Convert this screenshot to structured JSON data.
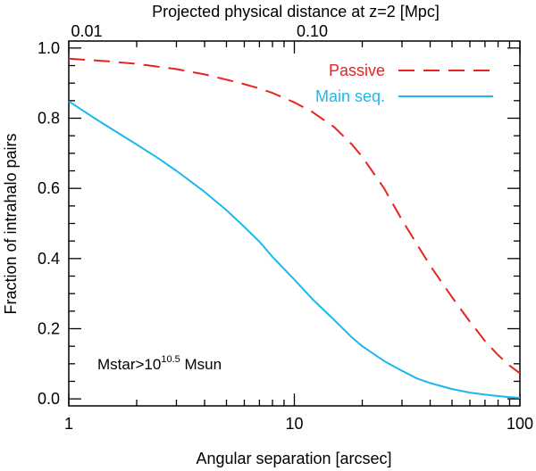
{
  "chart_data": {
    "type": "line",
    "title": "",
    "xlabel": "Angular separation [arcsec]",
    "ylabel": "Fraction of intrahalo pairs",
    "top_axis_label": "Projected physical distance at z=2 [Mpc]",
    "xscale": "log",
    "xlim": [
      1,
      100
    ],
    "ylim": [
      -0.02,
      1.02
    ],
    "x_ticks": [
      1,
      10,
      100
    ],
    "x_tick_labels": [
      "1",
      "10",
      "100"
    ],
    "y_ticks": [
      0.0,
      0.2,
      0.4,
      0.6,
      0.8,
      1.0
    ],
    "y_tick_labels": [
      "0.0",
      "0.2",
      "0.4",
      "0.6",
      "0.8",
      "1.0"
    ],
    "top_ticks_arcsec": [
      1,
      10
    ],
    "top_tick_labels": [
      "0.01",
      "0.10"
    ],
    "grid": false,
    "legend_position": "top-right",
    "annotation": {
      "base": "Mstar>10",
      "superscript": "10.5",
      "suffix": " Msun"
    },
    "series": [
      {
        "name": "Passive",
        "color": "#e8241f",
        "dash": "dashed",
        "x": [
          1,
          1.5,
          2,
          3,
          4,
          5,
          6,
          7,
          8,
          10,
          12,
          15,
          18,
          20,
          25,
          30,
          35,
          40,
          50,
          60,
          70,
          80,
          90,
          100
        ],
        "y": [
          0.97,
          0.962,
          0.955,
          0.94,
          0.925,
          0.91,
          0.897,
          0.885,
          0.872,
          0.845,
          0.818,
          0.775,
          0.725,
          0.69,
          0.6,
          0.51,
          0.44,
          0.38,
          0.29,
          0.22,
          0.165,
          0.125,
          0.095,
          0.073
        ]
      },
      {
        "name": "Main seq.",
        "color": "#1ab8ee",
        "dash": "solid",
        "x": [
          1,
          1.3,
          1.5,
          2,
          2.5,
          3,
          4,
          5,
          6,
          7,
          8,
          10,
          12,
          15,
          18,
          20,
          25,
          30,
          35,
          40,
          50,
          60,
          70,
          80,
          90,
          100
        ],
        "y": [
          0.848,
          0.8,
          0.775,
          0.725,
          0.685,
          0.65,
          0.59,
          0.538,
          0.49,
          0.448,
          0.405,
          0.34,
          0.285,
          0.225,
          0.175,
          0.15,
          0.108,
          0.08,
          0.058,
          0.045,
          0.028,
          0.018,
          0.012,
          0.008,
          0.005,
          0.003
        ]
      }
    ]
  }
}
